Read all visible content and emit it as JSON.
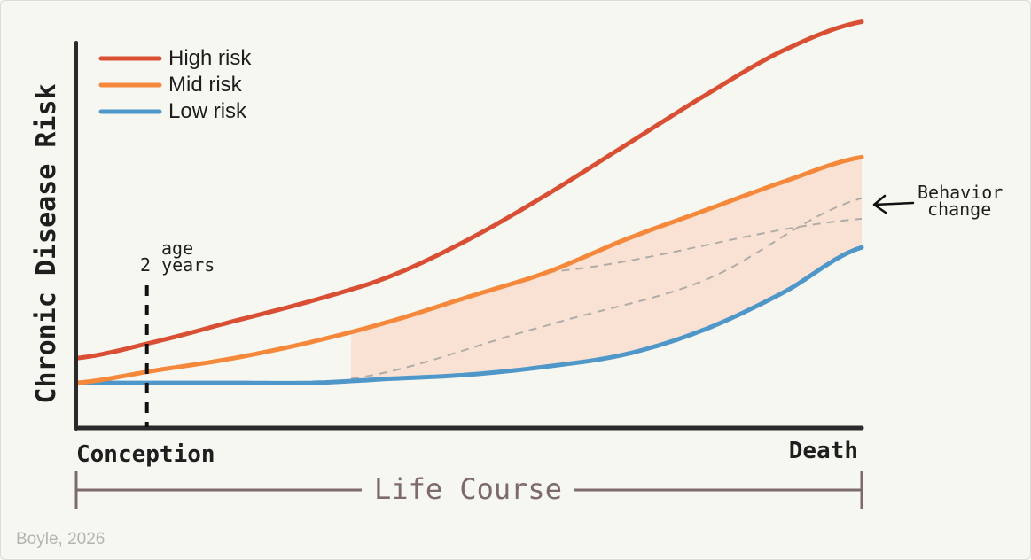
{
  "chart_data": {
    "type": "line",
    "title": "",
    "ylabel": "Chronic Disease Risk",
    "xlabel": "Life Course",
    "x_range": [
      0,
      1
    ],
    "ylim": [
      0,
      1
    ],
    "x_tick_labels": {
      "start": "Conception",
      "end": "Death"
    },
    "legend": {
      "placement": "top-left",
      "entries": [
        "High risk",
        "Mid risk",
        "Low risk"
      ]
    },
    "series": [
      {
        "name": "High risk",
        "color": "#d94f33",
        "x": [
          0,
          0.1,
          0.2,
          0.3,
          0.4,
          0.5,
          0.6,
          0.7,
          0.8,
          0.9,
          1.0
        ],
        "y": [
          0.17,
          0.21,
          0.26,
          0.31,
          0.37,
          0.46,
          0.57,
          0.69,
          0.81,
          0.92,
          0.99
        ]
      },
      {
        "name": "Mid risk",
        "color": "#f5883a",
        "x": [
          0,
          0.1,
          0.2,
          0.3,
          0.4,
          0.5,
          0.6,
          0.7,
          0.8,
          0.9,
          1.0
        ],
        "y": [
          0.11,
          0.14,
          0.17,
          0.21,
          0.26,
          0.32,
          0.38,
          0.46,
          0.53,
          0.6,
          0.66
        ]
      },
      {
        "name": "Low risk",
        "color": "#4f97c8",
        "x": [
          0,
          0.1,
          0.2,
          0.3,
          0.4,
          0.5,
          0.6,
          0.7,
          0.8,
          0.9,
          1.0
        ],
        "y": [
          0.11,
          0.11,
          0.11,
          0.11,
          0.12,
          0.13,
          0.15,
          0.18,
          0.24,
          0.33,
          0.44
        ]
      }
    ],
    "behavior_change_paths": [
      {
        "from": "Mid risk",
        "x": [
          0.6,
          1.0
        ],
        "y": [
          0.38,
          0.51
        ]
      },
      {
        "from": "Low risk",
        "x": [
          0.35,
          0.6,
          0.8,
          1.0
        ],
        "y": [
          0.12,
          0.25,
          0.36,
          0.56
        ]
      }
    ],
    "shaded_band": {
      "between": [
        "Mid risk",
        "Low risk"
      ],
      "x_range": [
        0.35,
        1.0
      ],
      "color": "#f7dbcb"
    },
    "marker": {
      "x": 0.09,
      "label_line1": "age",
      "label_line2": "2 years",
      "style": "dashed"
    },
    "annotation": {
      "line1": "Behavior",
      "line2": "change"
    }
  },
  "credit": "Boyle, 2026"
}
